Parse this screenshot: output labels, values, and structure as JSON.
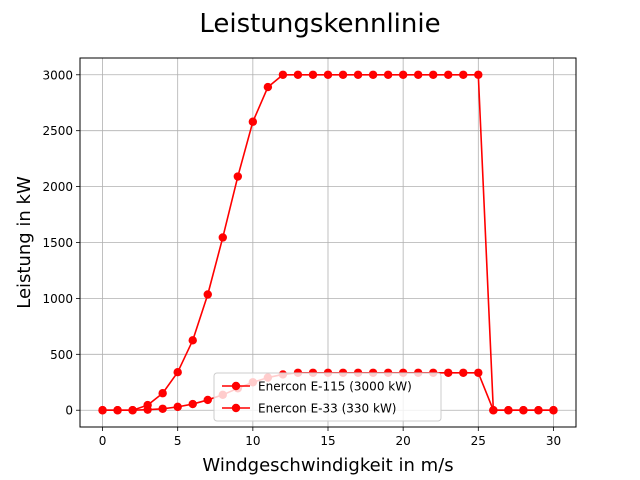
{
  "chart_data": {
    "type": "line",
    "title": "Leistungskennlinie",
    "xlabel": "Windgeschwindigkeit in m/s",
    "ylabel": "Leistung in kW",
    "xlim": [
      -1.5,
      31.5
    ],
    "ylim": [
      -150,
      3150
    ],
    "xticks": [
      0,
      5,
      10,
      15,
      20,
      25,
      30
    ],
    "yticks": [
      0,
      500,
      1000,
      1500,
      2000,
      2500,
      3000
    ],
    "grid": true,
    "legend_position": "lower-center",
    "x": [
      0,
      1,
      2,
      3,
      4,
      5,
      6,
      7,
      8,
      9,
      10,
      11,
      12,
      13,
      14,
      15,
      16,
      17,
      18,
      19,
      20,
      21,
      22,
      23,
      24,
      25,
      26,
      27,
      28,
      29,
      30
    ],
    "series": [
      {
        "name": "Enercon E-115 (3000 kW)",
        "color": "#ff0000",
        "marker": "circle",
        "values": [
          0,
          0,
          0,
          46,
          152,
          340,
          625,
          1035,
          1545,
          2090,
          2580,
          2890,
          3000,
          3000,
          3000,
          3000,
          3000,
          3000,
          3000,
          3000,
          3000,
          3000,
          3000,
          3000,
          3000,
          3000,
          0,
          0,
          0,
          0,
          0
        ]
      },
      {
        "name": "Enercon E-33 (330 kW)",
        "color": "#ff0000",
        "marker": "circle",
        "values": [
          0,
          0,
          0,
          5,
          13,
          30,
          55,
          92,
          138,
          196,
          250,
          292,
          320,
          335,
          335,
          335,
          335,
          335,
          335,
          335,
          335,
          335,
          335,
          335,
          335,
          335,
          0,
          0,
          0,
          0,
          0
        ]
      }
    ]
  }
}
